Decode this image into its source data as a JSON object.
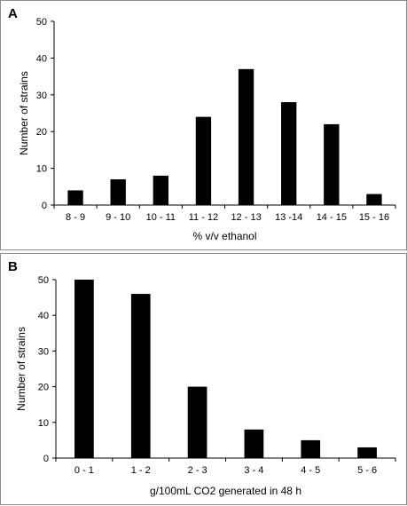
{
  "chart_data": [
    {
      "panel": "A",
      "type": "bar",
      "xlabel": "% v/v ethanol",
      "ylabel": "Number of strains",
      "ylim": [
        0,
        50
      ],
      "yticks": [
        0,
        10,
        20,
        30,
        40,
        50
      ],
      "categories": [
        "8 - 9",
        "9 - 10",
        "10 - 11",
        "11 - 12",
        "12 - 13",
        "13 -14",
        "14 - 15",
        "15 - 16"
      ],
      "values": [
        4,
        7,
        8,
        24,
        37,
        28,
        22,
        3
      ],
      "bar_color": "#000000",
      "grid": false
    },
    {
      "panel": "B",
      "type": "bar",
      "xlabel": "g/100mL  CO2 generated in 48 h",
      "ylabel": "Number of strains",
      "ylim": [
        0,
        50
      ],
      "yticks": [
        0,
        10,
        20,
        30,
        40,
        50
      ],
      "categories": [
        "0 - 1",
        "1 - 2",
        "2 - 3",
        "3 - 4",
        "4 - 5",
        "5 - 6"
      ],
      "values": [
        50,
        46,
        20,
        8,
        5,
        3
      ],
      "bar_color": "#000000",
      "grid": false
    }
  ]
}
